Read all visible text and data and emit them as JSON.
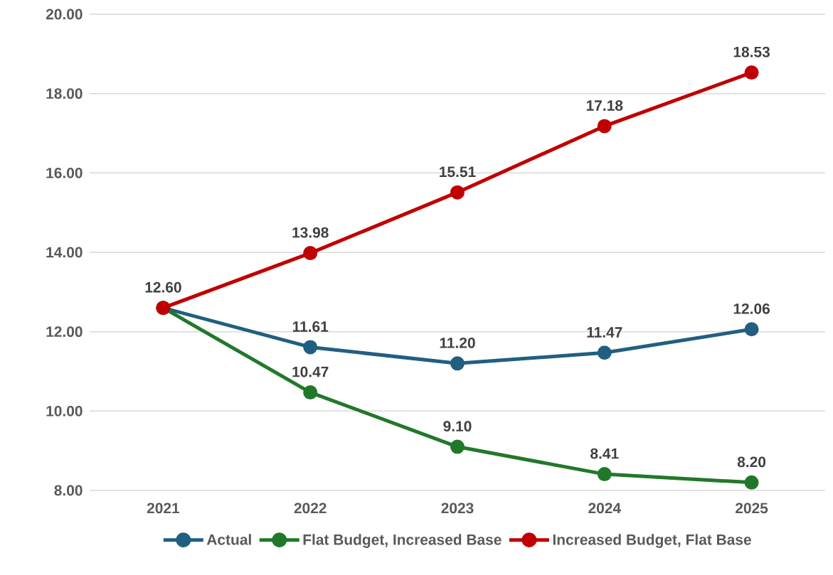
{
  "chart_data": {
    "type": "line",
    "categories": [
      "2021",
      "2022",
      "2023",
      "2024",
      "2025"
    ],
    "series": [
      {
        "name": "Actual",
        "color": "#215f80",
        "values": [
          12.6,
          11.61,
          11.2,
          11.47,
          12.06
        ],
        "value_labels": [
          null,
          "11.61",
          "11.20",
          "11.47",
          "12.06"
        ]
      },
      {
        "name": "Flat Budget, Increased Base",
        "color": "#22782a",
        "values": [
          12.6,
          10.47,
          9.1,
          8.41,
          8.2
        ],
        "value_labels": [
          null,
          "10.47",
          "9.10",
          "8.41",
          "8.20"
        ]
      },
      {
        "name": "Increased Budget, Flat Base",
        "color": "#c00000",
        "values": [
          12.6,
          13.98,
          15.51,
          17.18,
          18.53
        ],
        "value_labels": [
          "12.60",
          "13.98",
          "15.51",
          "17.18",
          "18.53"
        ]
      }
    ],
    "ylim": [
      8,
      20
    ],
    "yticks": [
      {
        "value": 8,
        "label": "8.00"
      },
      {
        "value": 10,
        "label": "10.00"
      },
      {
        "value": 12,
        "label": "12.00"
      },
      {
        "value": 14,
        "label": "14.00"
      },
      {
        "value": 16,
        "label": "16.00"
      },
      {
        "value": 18,
        "label": "18.00"
      },
      {
        "value": 20,
        "label": "20.00"
      }
    ],
    "grid": "y",
    "legend": "bottom",
    "marker": "circle",
    "line_style": "solid"
  }
}
